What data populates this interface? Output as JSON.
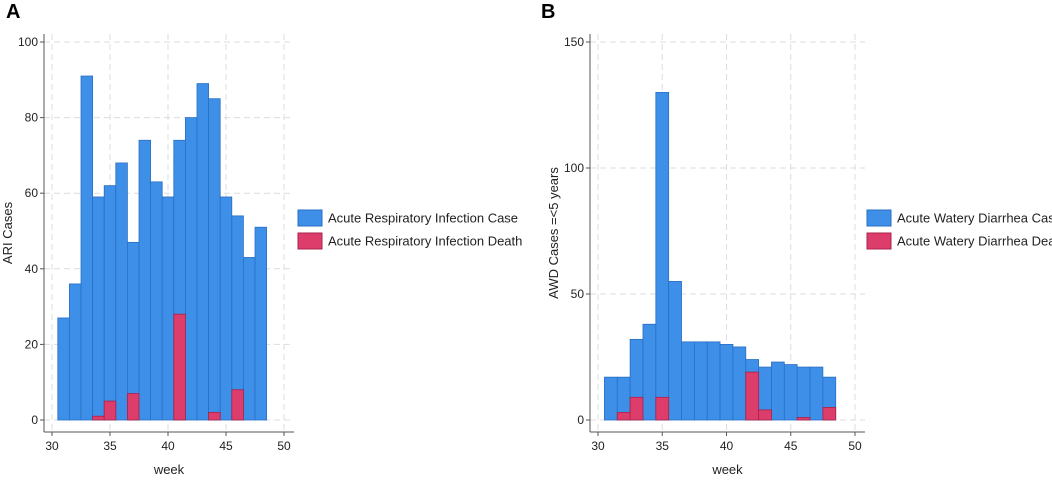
{
  "chart_data": [
    {
      "type": "bar",
      "panel_label": "A",
      "title": "",
      "xlabel": "week",
      "ylabel": "ARI Cases",
      "xlim": [
        30,
        50
      ],
      "ylim": [
        0,
        100
      ],
      "xticks": [
        30,
        35,
        40,
        45,
        50
      ],
      "yticks": [
        0,
        20,
        40,
        60,
        80,
        100
      ],
      "x": [
        31,
        32,
        33,
        34,
        35,
        36,
        37,
        38,
        39,
        40,
        41,
        42,
        43,
        44,
        45,
        46,
        47,
        48
      ],
      "series": [
        {
          "name": "Acute Respiratory Infection Case",
          "color": "#3D8FE8",
          "values": [
            27,
            36,
            91,
            59,
            62,
            68,
            47,
            74,
            63,
            59,
            74,
            80,
            89,
            85,
            59,
            54,
            43,
            51
          ]
        },
        {
          "name": "Acute Respiratory Infection Death",
          "color": "#DC3D6B",
          "values": [
            0,
            0,
            0,
            1,
            5,
            0,
            7,
            0,
            0,
            0,
            28,
            0,
            0,
            2,
            0,
            8,
            0,
            0
          ]
        }
      ],
      "legend": "right"
    },
    {
      "type": "bar",
      "panel_label": "B",
      "title": "",
      "xlabel": "week",
      "ylabel": "AWD Cases =<5 years",
      "xlim": [
        30,
        50
      ],
      "ylim": [
        0,
        150
      ],
      "xticks": [
        30,
        35,
        40,
        45,
        50
      ],
      "yticks": [
        0,
        50,
        100,
        150
      ],
      "x": [
        31,
        32,
        33,
        34,
        35,
        36,
        37,
        38,
        39,
        40,
        41,
        42,
        43,
        44,
        45,
        46,
        47,
        48
      ],
      "series": [
        {
          "name": "Acute Watery Diarrhea Case",
          "color": "#3D8FE8",
          "values": [
            17,
            17,
            32,
            38,
            130,
            55,
            31,
            31,
            31,
            30,
            29,
            24,
            21,
            23,
            22,
            21,
            21,
            17
          ]
        },
        {
          "name": "Acute Watery Diarrhea Death",
          "color": "#DC3D6B",
          "values": [
            0,
            3,
            9,
            0,
            9,
            0,
            0,
            0,
            0,
            0,
            0,
            19,
            4,
            0,
            0,
            1,
            0,
            5
          ]
        }
      ],
      "legend": "right"
    }
  ]
}
